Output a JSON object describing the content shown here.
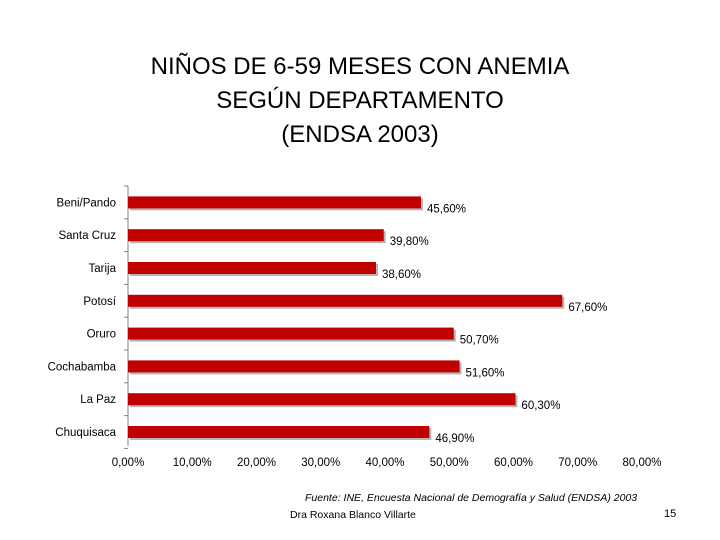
{
  "slide": {
    "title_lines": [
      "NIÑOS DE 6-59 MESES CON ANEMIA",
      "SEGÚN DEPARTAMENTO",
      "(ENDSA 2003)"
    ],
    "source": "Fuente: INE, Encuesta Nacional de Demografía y Salud (ENDSA) 2003",
    "author": "Dra Roxana Blanco Villarte",
    "page_number": "15"
  },
  "chart_data": {
    "type": "bar",
    "orientation": "horizontal",
    "title": "NIÑOS DE 6-59 MESES CON ANEMIA SEGÚN DEPARTAMENTO (ENDSA 2003)",
    "categories": [
      "Beni/Pando",
      "Santa Cruz",
      "Tarija",
      "Potosí",
      "Oruro",
      "Cochabamba",
      "La Paz",
      "Chuquisaca"
    ],
    "values": [
      45.6,
      39.8,
      38.6,
      67.6,
      50.7,
      51.6,
      60.3,
      46.9
    ],
    "value_labels": [
      "45,60%",
      "39,80%",
      "38,60%",
      "67,60%",
      "50,70%",
      "51,60%",
      "60,30%",
      "46,90%"
    ],
    "xlim": [
      0,
      80
    ],
    "x_ticks": [
      0,
      10,
      20,
      30,
      40,
      50,
      60,
      70,
      80
    ],
    "x_tick_labels": [
      "0,00%",
      "10,00%",
      "20,00%",
      "30,00%",
      "40,00%",
      "50,00%",
      "60,00%",
      "70,00%",
      "80,00%"
    ],
    "xlabel": "",
    "ylabel": "",
    "grid": false,
    "legend": "none",
    "colors": {
      "bar": "#c00000",
      "bar_shadow": "#7a7a7a",
      "axis": "#808080"
    }
  }
}
